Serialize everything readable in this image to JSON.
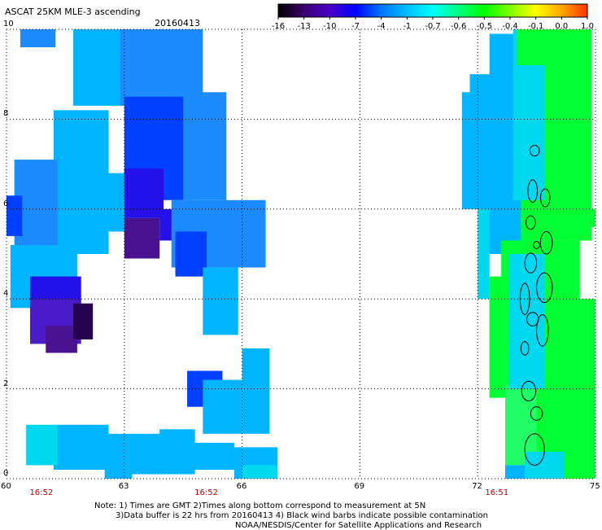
{
  "header": {
    "title": "ASCAT 25KM MLE-3 ascending",
    "date": "20160413"
  },
  "colorbar": {
    "labels": [
      "-16",
      "-13",
      "-10",
      "-7",
      "-4",
      "-1",
      "-0.7",
      "-0.6",
      "-0.5",
      "-0.4",
      "-0.1",
      "0.0",
      "1.0"
    ],
    "colors": [
      "#000000",
      "#3a006e",
      "#4b00c8",
      "#0000ff",
      "#0077ff",
      "#00bfff",
      "#00ffff",
      "#00ff7f",
      "#00ff00",
      "#7fff00",
      "#ffff00",
      "#ffa500",
      "#ff3300"
    ]
  },
  "chart_data": {
    "type": "heatmap",
    "xlim": [
      60,
      75
    ],
    "ylim": [
      0,
      10
    ],
    "x_ticks": [
      "60",
      "63",
      "66",
      "69",
      "72",
      "75"
    ],
    "y_ticks": [
      "0",
      "2",
      "4",
      "6",
      "8",
      "10"
    ],
    "grid": "dotted",
    "pass_times": [
      "16:52",
      "16:52",
      "16:51"
    ]
  },
  "footer": {
    "line1": "Note: 1) Times are GMT 2)Times along bottom correspond to measurement at 5N",
    "line2": "3)Data buffer is 22 hrs from 20160413 4) Black wind barbs indicate possible contamination",
    "line3": "NOAA/NESDIS/Center for Satellite Applications and Research"
  }
}
